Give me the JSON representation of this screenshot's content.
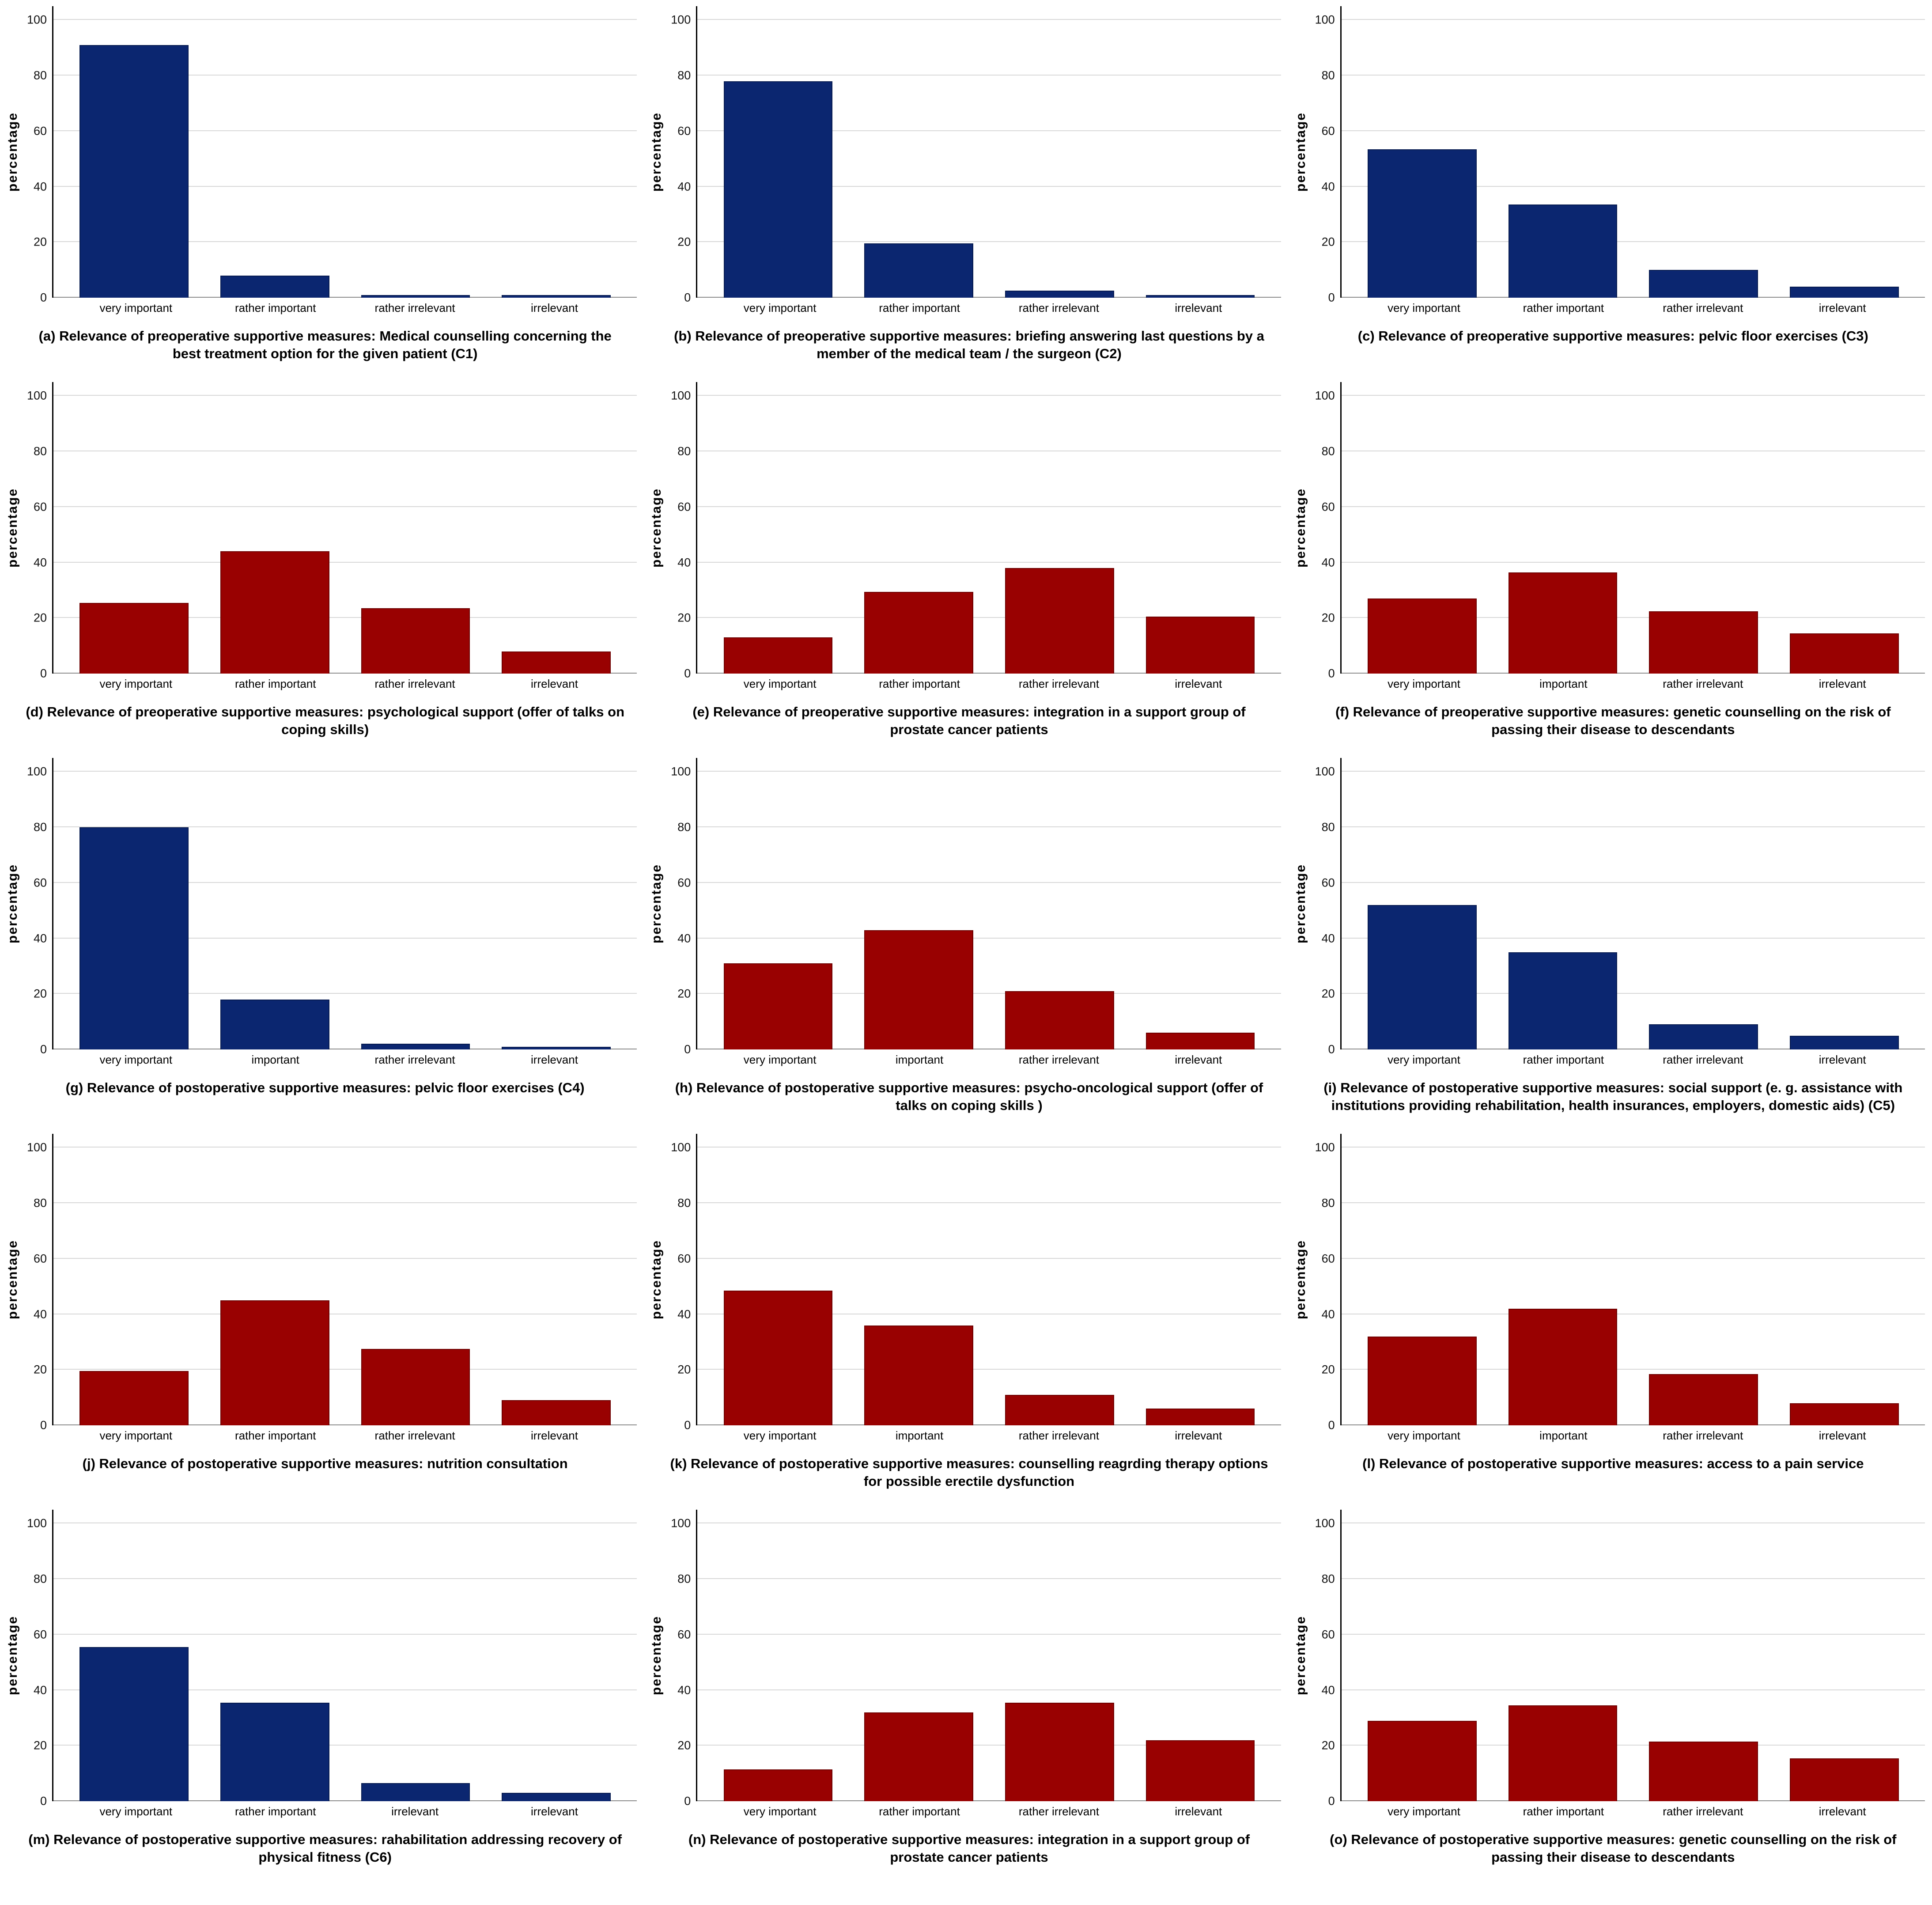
{
  "page": {
    "ylabel": "percentage",
    "yticks": [
      0,
      20,
      40,
      60,
      80,
      100
    ],
    "ylim": [
      0,
      105
    ],
    "grid": true,
    "legend": "none",
    "colors": {
      "navy": "#0b2670",
      "red": "#990101",
      "gridline": "#d8d8d8",
      "axis": "#000000"
    }
  },
  "chart_data": [
    {
      "type": "bar",
      "color": "navy",
      "categories": [
        "very important",
        "rather important",
        "rather irrelevant",
        "irrelevant"
      ],
      "values": [
        91,
        8,
        1,
        1
      ],
      "title": "(a) Relevance of preoperative supportive measures: Medical counselling concerning the best treatment option for the given patient (C1)",
      "xlabel": "",
      "ylabel": "percentage",
      "ylim": [
        0,
        100
      ]
    },
    {
      "type": "bar",
      "color": "navy",
      "categories": [
        "very important",
        "rather important",
        "rather irrelevant",
        "irrelevant"
      ],
      "values": [
        78,
        19.5,
        2.5,
        1
      ],
      "title": "(b) Relevance of preoperative supportive measures: briefing answering last questions by a member of the medical team / the surgeon (C2)",
      "xlabel": "",
      "ylabel": "percentage",
      "ylim": [
        0,
        100
      ]
    },
    {
      "type": "bar",
      "color": "navy",
      "categories": [
        "very important",
        "rather important",
        "rather irrelevant",
        "irrelevant"
      ],
      "values": [
        53.5,
        33.5,
        10,
        4
      ],
      "title": "(c) Relevance of preoperative supportive measures: pelvic floor exercises (C3)",
      "xlabel": "",
      "ylabel": "percentage",
      "ylim": [
        0,
        100
      ]
    },
    {
      "type": "bar",
      "color": "red",
      "categories": [
        "very important",
        "rather important",
        "rather irrelevant",
        "irrelevant"
      ],
      "values": [
        25.5,
        44,
        23.5,
        8
      ],
      "title": "(d) Relevance of preoperative supportive measures: psychological support (offer of talks on coping skills)",
      "xlabel": "",
      "ylabel": "percentage",
      "ylim": [
        0,
        100
      ]
    },
    {
      "type": "bar",
      "color": "red",
      "categories": [
        "very important",
        "rather important",
        "rather irrelevant",
        "irrelevant"
      ],
      "values": [
        13,
        29.5,
        38,
        20.5
      ],
      "title": "(e) Relevance of preoperative supportive measures: integration in a support group of prostate cancer patients",
      "xlabel": "",
      "ylabel": "percentage",
      "ylim": [
        0,
        100
      ]
    },
    {
      "type": "bar",
      "color": "red",
      "categories": [
        "very important",
        "important",
        "rather irrelevant",
        "irrelevant"
      ],
      "values": [
        27,
        36.5,
        22.5,
        14.5
      ],
      "title": "(f) Relevance of preoperative supportive measures: genetic counselling on the risk of passing their disease to descendants",
      "xlabel": "",
      "ylabel": "percentage",
      "ylim": [
        0,
        100
      ]
    },
    {
      "type": "bar",
      "color": "navy",
      "categories": [
        "very important",
        "important",
        "rather irrelevant",
        "irrelevant"
      ],
      "values": [
        80,
        18,
        2,
        1
      ],
      "title": "(g) Relevance of postoperative supportive measures: pelvic floor exercises (C4)",
      "xlabel": "",
      "ylabel": "percentage",
      "ylim": [
        0,
        100
      ]
    },
    {
      "type": "bar",
      "color": "red",
      "categories": [
        "very important",
        "important",
        "rather irrelevant",
        "irrelevant"
      ],
      "values": [
        31,
        43,
        21,
        6
      ],
      "title": "(h) Relevance of postoperative supportive measures: psycho-oncological support (offer of talks on coping skills )",
      "xlabel": "",
      "ylabel": "percentage",
      "ylim": [
        0,
        100
      ]
    },
    {
      "type": "bar",
      "color": "navy",
      "categories": [
        "very important",
        "rather important",
        "rather irrelevant",
        "irrelevant"
      ],
      "values": [
        52,
        35,
        9,
        5
      ],
      "title": "(i) Relevance of postoperative supportive measures: social support (e. g. assistance with institutions providing rehabilitation, health insurances, employers, domestic aids) (C5)",
      "xlabel": "",
      "ylabel": "percentage",
      "ylim": [
        0,
        100
      ]
    },
    {
      "type": "bar",
      "color": "red",
      "categories": [
        "very important",
        "rather important",
        "rather irrelevant",
        "irrelevant"
      ],
      "values": [
        19.5,
        45,
        27.5,
        9
      ],
      "title": "(j) Relevance of postoperative supportive measures: nutrition consultation",
      "xlabel": "",
      "ylabel": "percentage",
      "ylim": [
        0,
        100
      ]
    },
    {
      "type": "bar",
      "color": "red",
      "categories": [
        "very important",
        "important",
        "rather irrelevant",
        "irrelevant"
      ],
      "values": [
        48.5,
        36,
        11,
        6
      ],
      "title": "(k) Relevance of postoperative supportive measures: counselling reagrding therapy options for possible erectile dysfunction",
      "xlabel": "",
      "ylabel": "percentage",
      "ylim": [
        0,
        100
      ]
    },
    {
      "type": "bar",
      "color": "red",
      "categories": [
        "very important",
        "important",
        "rather irrelevant",
        "irrelevant"
      ],
      "values": [
        32,
        42,
        18.5,
        8
      ],
      "title": "(l) Relevance of postoperative supportive measures: access to a pain service",
      "xlabel": "",
      "ylabel": "percentage",
      "ylim": [
        0,
        100
      ]
    },
    {
      "type": "bar",
      "color": "navy",
      "categories": [
        "very important",
        "rather important",
        "irrelevant",
        "irrelevant"
      ],
      "values": [
        55.5,
        35.5,
        6.5,
        3
      ],
      "title": "(m) Relevance of postoperative supportive measures: rahabilitation addressing recovery of physical fitness (C6)",
      "xlabel": "",
      "ylabel": "percentage",
      "ylim": [
        0,
        100
      ]
    },
    {
      "type": "bar",
      "color": "red",
      "categories": [
        "very important",
        "rather important",
        "rather irrelevant",
        "irrelevant"
      ],
      "values": [
        11.5,
        32,
        35.5,
        22
      ],
      "title": "(n) Relevance of postoperative supportive measures: integration in a support group of prostate cancer patients",
      "xlabel": "",
      "ylabel": "percentage",
      "ylim": [
        0,
        100
      ]
    },
    {
      "type": "bar",
      "color": "red",
      "categories": [
        "very important",
        "rather important",
        "rather irrelevant",
        "irrelevant"
      ],
      "values": [
        29,
        34.5,
        21.5,
        15.5
      ],
      "title": "(o) Relevance of postoperative supportive measures: genetic counselling on the risk of passing their disease to descendants",
      "xlabel": "",
      "ylabel": "percentage",
      "ylim": [
        0,
        100
      ]
    }
  ]
}
